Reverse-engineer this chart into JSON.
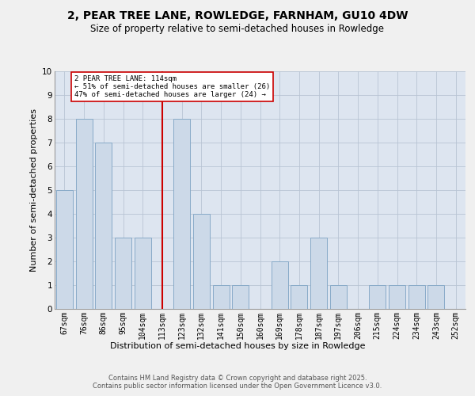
{
  "title1": "2, PEAR TREE LANE, ROWLEDGE, FARNHAM, GU10 4DW",
  "title2": "Size of property relative to semi-detached houses in Rowledge",
  "xlabel": "Distribution of semi-detached houses by size in Rowledge",
  "ylabel": "Number of semi-detached properties",
  "categories": [
    "67sqm",
    "76sqm",
    "86sqm",
    "95sqm",
    "104sqm",
    "113sqm",
    "123sqm",
    "132sqm",
    "141sqm",
    "150sqm",
    "160sqm",
    "169sqm",
    "178sqm",
    "187sqm",
    "197sqm",
    "206sqm",
    "215sqm",
    "224sqm",
    "234sqm",
    "243sqm",
    "252sqm"
  ],
  "values": [
    5,
    8,
    7,
    3,
    3,
    0,
    8,
    4,
    1,
    1,
    0,
    2,
    1,
    3,
    1,
    0,
    1,
    1,
    1,
    1,
    0
  ],
  "bar_color": "#ccd9e8",
  "bar_edge_color": "#88aac8",
  "grid_color": "#b8c4d4",
  "bg_color": "#dde5f0",
  "red_line_index": 5,
  "red_line_color": "#cc0000",
  "annotation_line1": "2 PEAR TREE LANE: 114sqm",
  "annotation_line2": "← 51% of semi-detached houses are smaller (26)",
  "annotation_line3": "47% of semi-detached houses are larger (24) →",
  "annotation_box_facecolor": "#ffffff",
  "annotation_box_edgecolor": "#cc0000",
  "footer": "Contains HM Land Registry data © Crown copyright and database right 2025.\nContains public sector information licensed under the Open Government Licence v3.0.",
  "ylim": [
    0,
    10
  ],
  "yticks": [
    0,
    1,
    2,
    3,
    4,
    5,
    6,
    7,
    8,
    9,
    10
  ],
  "fig_bg": "#f0f0f0",
  "title1_fontsize": 10,
  "title2_fontsize": 8.5,
  "ylabel_fontsize": 8,
  "xlabel_fontsize": 8,
  "tick_fontsize": 7,
  "annot_fontsize": 6.5,
  "footer_fontsize": 6
}
